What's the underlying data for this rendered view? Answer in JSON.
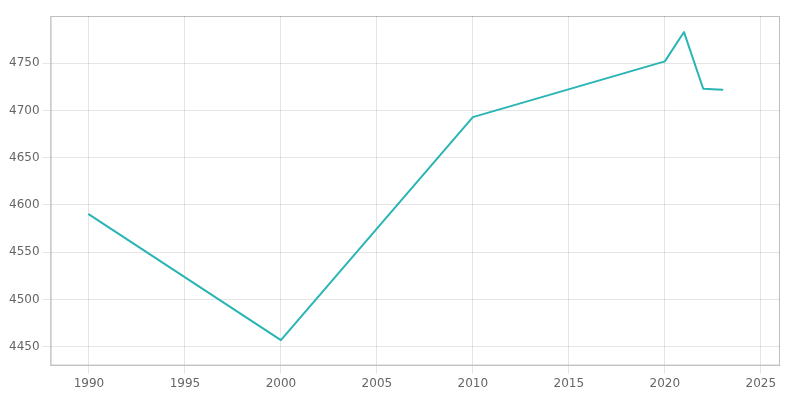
{
  "chart_data": {
    "type": "line",
    "x": [
      1990,
      2000,
      2010,
      2020,
      2021,
      2022,
      2023
    ],
    "values": [
      4590,
      4457,
      4693,
      4752,
      4783,
      4723,
      4722
    ],
    "color": "#2ab5b5",
    "xlim": [
      1988,
      2026
    ],
    "ylim": [
      4430,
      4800
    ],
    "xticks": [
      1990,
      1995,
      2000,
      2005,
      2010,
      2015,
      2020,
      2025
    ],
    "yticks": [
      4450,
      4500,
      4550,
      4600,
      4650,
      4700,
      4750
    ],
    "grid": true
  }
}
